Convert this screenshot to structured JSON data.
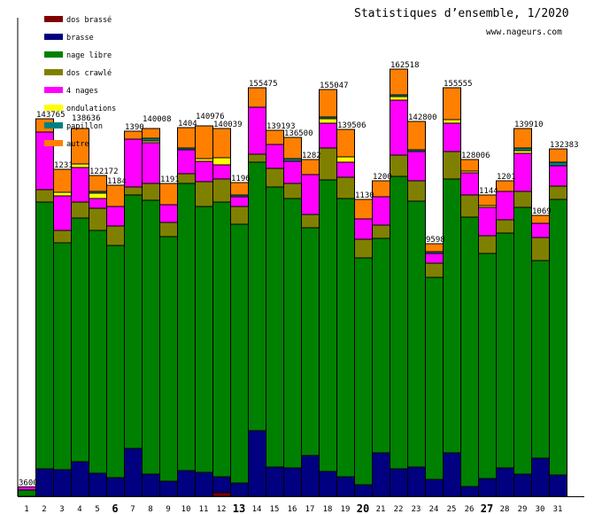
{
  "chart_data": {
    "type": "bar",
    "stacked": true,
    "title": "Statistiques d’ensemble, 1/2020",
    "subtitle": "www.nageurs.com",
    "xlabel": "",
    "ylabel": "",
    "grid": false,
    "legend_position": "top-left",
    "categories": [
      "1",
      "2",
      "3",
      "4",
      "5",
      "6",
      "7",
      "8",
      "9",
      "10",
      "11",
      "12",
      "13",
      "14",
      "15",
      "16",
      "17",
      "18",
      "19",
      "20",
      "21",
      "22",
      "23",
      "24",
      "25",
      "26",
      "27",
      "28",
      "29",
      "30",
      "31"
    ],
    "bold_categories": [
      "6",
      "13",
      "20",
      "27"
    ],
    "bar_labels": [
      "3600",
      "143765",
      "1231",
      "138636",
      "122172",
      "1184",
      "1390",
      "140008",
      "1191",
      "1404",
      "140976",
      "140039",
      "1196",
      "155475",
      "139193",
      "136500",
      "1282",
      "155047",
      "139506",
      "1130",
      "1200",
      "162518",
      "142800",
      "9598",
      "155555",
      "128006",
      "1144",
      "1201",
      "139910",
      "1069",
      "132383"
    ],
    "series": [
      {
        "name": "dos brassé",
        "color": "#800000",
        "values": [
          0,
          0,
          0,
          0,
          0,
          0,
          0,
          0,
          0,
          0,
          0,
          1350,
          0,
          0,
          0,
          0,
          0,
          0,
          0,
          0,
          0,
          0,
          0,
          0,
          0,
          0,
          0,
          0,
          0,
          0,
          0
        ]
      },
      {
        "name": "brasse",
        "color": "#000080",
        "values": [
          0,
          10460,
          10125,
          13160,
          8775,
          7090,
          18225,
          8440,
          5740,
          9790,
          9110,
          6075,
          5060,
          24975,
          11140,
          10800,
          15525,
          9450,
          7425,
          4390,
          16540,
          10460,
          11140,
          6410,
          16540,
          3710,
          6750,
          10800,
          8440,
          14510,
          8100
        ]
      },
      {
        "name": "nage libre",
        "color": "#008000",
        "values": [
          2400,
          101590,
          86400,
          92810,
          92475,
          88425,
          96525,
          104290,
          93150,
          109350,
          101250,
          104625,
          98550,
          102260,
          106650,
          102600,
          86740,
          111040,
          105975,
          86400,
          81675,
          111375,
          101250,
          76950,
          104290,
          102600,
          85725,
          89440,
          101590,
          75260,
          104960
        ]
      },
      {
        "name": "dos crawlé",
        "color": "#808000",
        "values": [
          0,
          4725,
          4725,
          6075,
          8440,
          7425,
          3040,
          6410,
          5400,
          3710,
          9450,
          8775,
          6750,
          3040,
          7090,
          5740,
          5060,
          12150,
          8100,
          7090,
          5060,
          8100,
          7760,
          5400,
          10460,
          8440,
          6750,
          5060,
          6075,
          8775,
          5060
        ]
      },
      {
        "name": "4 nages",
        "color": "#ff00ff",
        "values": [
          1200,
          21940,
          13160,
          13160,
          3710,
          7425,
          18225,
          15525,
          6750,
          9110,
          7760,
          5400,
          3710,
          17890,
          9110,
          8440,
          15190,
          9450,
          5740,
          7760,
          10800,
          20925,
          11140,
          3710,
          10800,
          8440,
          10800,
          10800,
          14510,
          5400,
          7760
        ]
      },
      {
        "name": "ondulations",
        "color": "#ffff00",
        "values": [
          0,
          0,
          1350,
          1350,
          2025,
          0,
          0,
          675,
          0,
          0,
          1010,
          2700,
          0,
          0,
          0,
          0,
          0,
          1690,
          2025,
          0,
          0,
          1350,
          0,
          0,
          1350,
          675,
          675,
          0,
          1010,
          0,
          0
        ]
      },
      {
        "name": "papillon",
        "color": "#008080",
        "values": [
          0,
          0,
          0,
          0,
          675,
          0,
          0,
          1010,
          0,
          675,
          0,
          0,
          675,
          0,
          0,
          1010,
          0,
          675,
          0,
          0,
          0,
          675,
          675,
          675,
          0,
          0,
          0,
          0,
          1010,
          0,
          1350
        ]
      },
      {
        "name": "autre",
        "color": "#ff8000",
        "values": [
          0,
          5050,
          8775,
          13500,
          6075,
          8100,
          3040,
          3710,
          8100,
          7760,
          12490,
          11140,
          4725,
          7425,
          5400,
          8100,
          5740,
          10460,
          10460,
          7425,
          6075,
          9790,
          10800,
          3040,
          12150,
          4390,
          4050,
          4050,
          7425,
          3040,
          5060
        ]
      }
    ],
    "ylim": [
      0,
      182000
    ]
  }
}
